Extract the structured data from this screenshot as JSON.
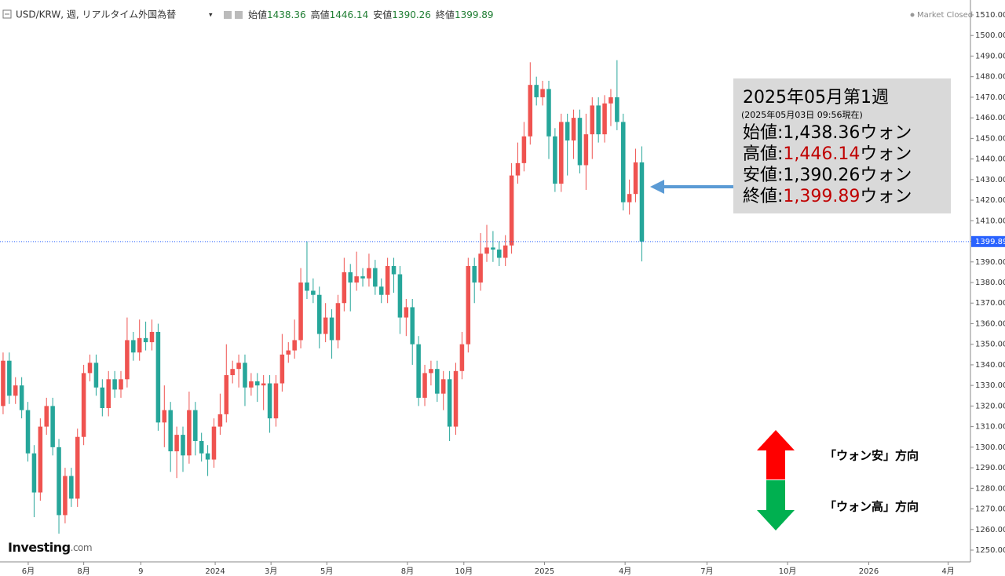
{
  "chart_data": {
    "type": "candlestick",
    "header": {
      "title": "USD/KRW, 週, リアルタイム外国為替",
      "labels": [
        "始値",
        "高値",
        "安値",
        "終値"
      ],
      "status": "Market Closed"
    },
    "brand": {
      "name": "Investing",
      "suffix": ".com"
    },
    "up_color": "#ef5350",
    "down_color": "#26a69a",
    "last_price_color": "#2962ff",
    "xlim": [
      -0.5,
      154.6
    ],
    "xticks": [
      {
        "value": 4.05,
        "label": "6月"
      },
      {
        "value": 13.0,
        "label": "8月"
      },
      {
        "value": 22.2,
        "label": "9"
      },
      {
        "value": 34.2,
        "label": "2024"
      },
      {
        "value": 43.2,
        "label": "3月"
      },
      {
        "value": 52.2,
        "label": "5月"
      },
      {
        "value": 65.2,
        "label": "8月"
      },
      {
        "value": 74.3,
        "label": "10月"
      },
      {
        "value": 87.3,
        "label": "2025"
      },
      {
        "value": 100.3,
        "label": "4月"
      },
      {
        "value": 113.5,
        "label": "7月"
      },
      {
        "value": 126.5,
        "label": "10月"
      },
      {
        "value": 139.6,
        "label": "2026"
      },
      {
        "value": 152.4,
        "label": "4月"
      }
    ],
    "ylim": [
      1250,
      1510
    ],
    "yticks": [
      {
        "value": 1250,
        "label": "1250.00"
      },
      {
        "value": 1260,
        "label": "1260.00"
      },
      {
        "value": 1270,
        "label": "1270.00"
      },
      {
        "value": 1280,
        "label": "1280.00"
      },
      {
        "value": 1290,
        "label": "1290.00"
      },
      {
        "value": 1300,
        "label": "1300.00"
      },
      {
        "value": 1310,
        "label": "1310.00"
      },
      {
        "value": 1320,
        "label": "1320.00"
      },
      {
        "value": 1330,
        "label": "1330.00"
      },
      {
        "value": 1340,
        "label": "1340.00"
      },
      {
        "value": 1350,
        "label": "1350.00"
      },
      {
        "value": 1360,
        "label": "1360.00"
      },
      {
        "value": 1370,
        "label": "1370.00"
      },
      {
        "value": 1380,
        "label": "1380.00"
      },
      {
        "value": 1390,
        "label": "1390.00"
      },
      {
        "value": 1400,
        "label": "1400.00"
      },
      {
        "value": 1410,
        "label": "1410.00"
      },
      {
        "value": 1420,
        "label": "1420.00"
      },
      {
        "value": 1430,
        "label": "1430.00"
      },
      {
        "value": 1440,
        "label": "1440.00"
      },
      {
        "value": 1450,
        "label": "1450.00"
      },
      {
        "value": 1460,
        "label": "1460.00"
      },
      {
        "value": 1470,
        "label": "1470.00"
      },
      {
        "value": 1480,
        "label": "1480.00"
      },
      {
        "value": 1490,
        "label": "1490.00"
      },
      {
        "value": 1500,
        "label": "1500.00"
      },
      {
        "value": 1510,
        "label": "1510.00"
      }
    ],
    "open": [
      1320,
      1342,
      1325,
      1330,
      1318,
      1297,
      1278,
      1310,
      1320,
      1300,
      1267,
      1286,
      1275,
      1305,
      1336,
      1341,
      1329,
      1319,
      1333,
      1328,
      1333,
      1352,
      1346,
      1353,
      1351,
      1356,
      1312,
      1318,
      1298,
      1306,
      1296,
      1318,
      1303,
      1297,
      1294,
      1310,
      1316,
      1335,
      1338,
      1341,
      1329,
      1332,
      1330,
      1331,
      1314,
      1331,
      1345,
      1347,
      1352,
      1380,
      1376,
      1374,
      1355,
      1363,
      1352,
      1370,
      1385,
      1380,
      1383,
      1382,
      1387,
      1378,
      1374,
      1388,
      1384,
      1363,
      1368,
      1350,
      1324,
      1336,
      1338,
      1326,
      1333,
      1310,
      1337,
      1350,
      1388,
      1380,
      1394,
      1397,
      1396,
      1392,
      1398,
      1432,
      1438,
      1451,
      1476,
      1470,
      1474,
      1451,
      1428,
      1458,
      1449,
      1460,
      1437,
      1452,
      1466,
      1452,
      1467,
      1470,
      1458,
      1419,
      1423,
      1438.36
    ],
    "high": [
      1346,
      1346,
      1334,
      1334,
      1322,
      1301,
      1314,
      1324,
      1324,
      1304,
      1290,
      1290,
      1309,
      1340,
      1345,
      1345,
      1333,
      1337,
      1337,
      1337,
      1363,
      1356,
      1362,
      1361,
      1362,
      1360,
      1330,
      1322,
      1310,
      1310,
      1327,
      1322,
      1307,
      1301,
      1314,
      1326,
      1350,
      1342,
      1345,
      1345,
      1336,
      1336,
      1335,
      1335,
      1335,
      1355,
      1351,
      1362,
      1387,
      1400,
      1382,
      1378,
      1370,
      1367,
      1374,
      1392,
      1389,
      1395,
      1387,
      1394,
      1391,
      1382,
      1392,
      1392,
      1388,
      1372,
      1372,
      1354,
      1340,
      1342,
      1342,
      1337,
      1337,
      1341,
      1356,
      1392,
      1392,
      1404,
      1408,
      1405,
      1400,
      1403,
      1438,
      1448,
      1458,
      1487,
      1480,
      1478,
      1478,
      1455,
      1462,
      1462,
      1464,
      1464,
      1462,
      1470,
      1470,
      1471,
      1474,
      1488,
      1462,
      1430,
      1445,
      1446.14
    ],
    "low": [
      1316,
      1321,
      1321,
      1314,
      1293,
      1266,
      1274,
      1306,
      1296,
      1258,
      1263,
      1271,
      1271,
      1301,
      1332,
      1325,
      1315,
      1315,
      1324,
      1324,
      1329,
      1342,
      1342,
      1347,
      1347,
      1308,
      1300,
      1288,
      1285,
      1288,
      1292,
      1296,
      1293,
      1286,
      1290,
      1306,
      1312,
      1331,
      1329,
      1320,
      1325,
      1322,
      1318,
      1307,
      1310,
      1327,
      1341,
      1343,
      1348,
      1372,
      1370,
      1348,
      1351,
      1343,
      1348,
      1366,
      1366,
      1376,
      1378,
      1378,
      1374,
      1370,
      1370,
      1375,
      1355,
      1354,
      1340,
      1320,
      1320,
      1330,
      1322,
      1318,
      1303,
      1306,
      1333,
      1346,
      1370,
      1376,
      1390,
      1390,
      1388,
      1388,
      1394,
      1428,
      1434,
      1447,
      1466,
      1466,
      1440,
      1424,
      1424,
      1432,
      1440,
      1433,
      1425,
      1440,
      1448,
      1448,
      1456,
      1454,
      1415,
      1413,
      1419,
      1390.26
    ],
    "close": [
      1342,
      1325,
      1330,
      1318,
      1297,
      1278,
      1310,
      1320,
      1300,
      1267,
      1286,
      1275,
      1305,
      1336,
      1341,
      1329,
      1319,
      1333,
      1328,
      1333,
      1352,
      1346,
      1353,
      1351,
      1356,
      1312,
      1318,
      1298,
      1306,
      1296,
      1318,
      1303,
      1297,
      1294,
      1310,
      1316,
      1335,
      1338,
      1341,
      1329,
      1332,
      1330,
      1331,
      1314,
      1331,
      1345,
      1347,
      1352,
      1380,
      1376,
      1374,
      1355,
      1363,
      1352,
      1370,
      1385,
      1380,
      1383,
      1382,
      1387,
      1378,
      1374,
      1388,
      1384,
      1363,
      1368,
      1350,
      1324,
      1336,
      1338,
      1326,
      1333,
      1310,
      1337,
      1350,
      1388,
      1380,
      1394,
      1397,
      1396,
      1392,
      1398,
      1432,
      1438,
      1451,
      1476,
      1470,
      1474,
      1451,
      1428,
      1458,
      1449,
      1460,
      1437,
      1452,
      1466,
      1452,
      1467,
      1470,
      1458,
      1419,
      1423,
      1438.36,
      1399.89
    ],
    "info_box": {
      "title": "2025年05月第1週",
      "note": "(2025年05月03日 09:56現在)",
      "highlight_color": "#c00000",
      "rows": [
        {
          "label": "始値:",
          "value": "1,438.36",
          "unit": "ウォン",
          "highlight": false
        },
        {
          "label": "高値:",
          "value": "1,446.14",
          "unit": "ウォン",
          "highlight": true
        },
        {
          "label": "安値:",
          "value": "1,390.26",
          "unit": "ウォン",
          "highlight": false
        },
        {
          "label": "終値:",
          "value": "1,399.89",
          "unit": "ウォン",
          "highlight": true
        }
      ]
    },
    "legend": [
      "「ウォン安」方向",
      "「ウォン高」方向"
    ]
  }
}
